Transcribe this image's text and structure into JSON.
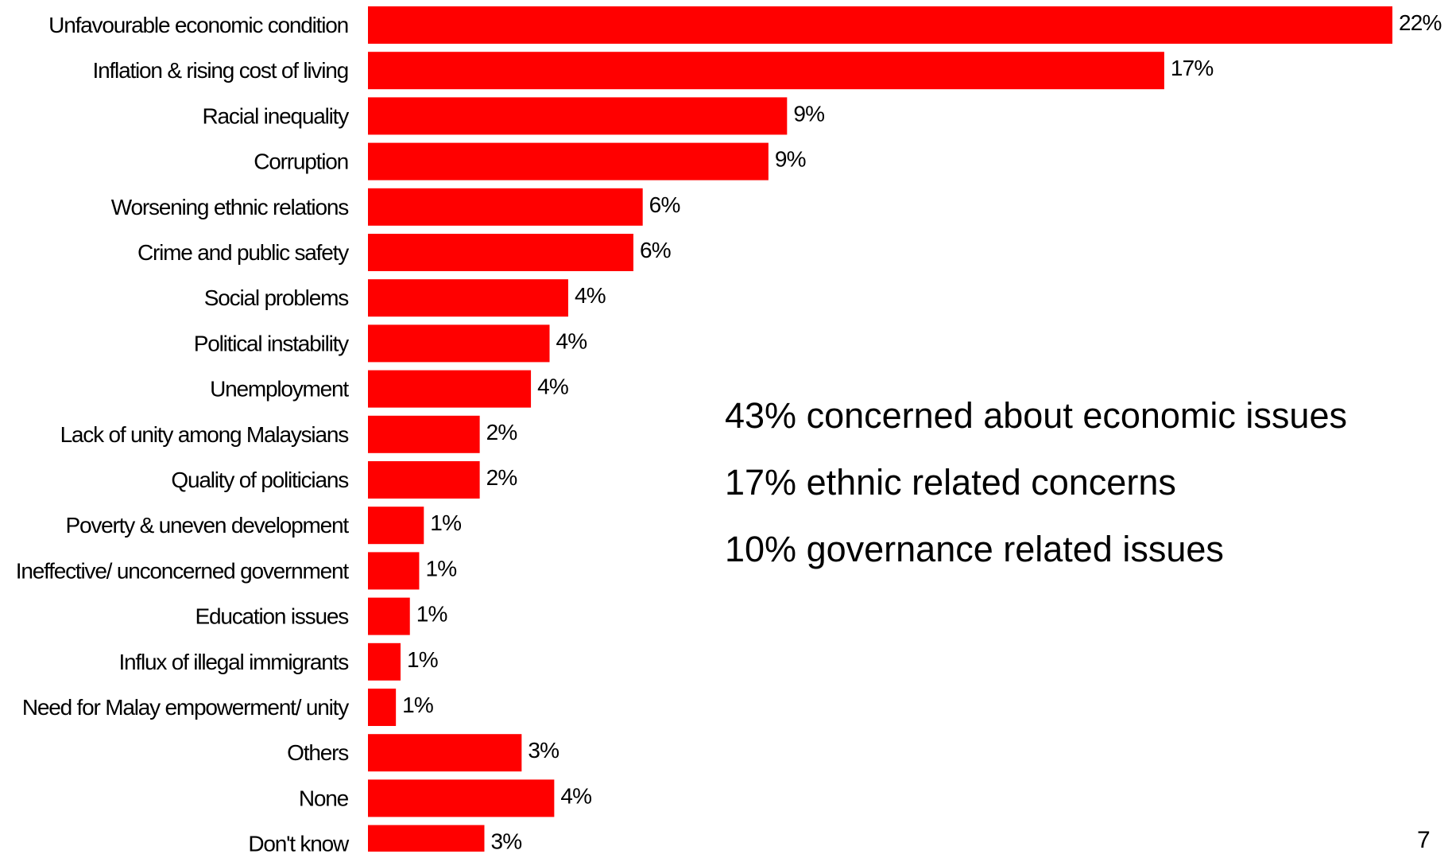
{
  "chart_data": {
    "type": "bar",
    "orientation": "horizontal",
    "categories": [
      "Unfavourable economic condition",
      "Inflation & rising cost of living",
      "Racial inequality",
      "Corruption",
      "Worsening ethnic relations",
      "Crime and public safety",
      "Social problems",
      "Political instability",
      "Unemployment",
      "Lack of unity among Malaysians",
      "Quality of politicians",
      "Poverty & uneven development",
      "Ineffective/ unconcerned government",
      "Education issues",
      "Influx of illegal immigrants",
      "Need for Malay empowerment/ unity",
      "Others",
      "None",
      "Don't know"
    ],
    "values": [
      22,
      17,
      9,
      9,
      6,
      6,
      4,
      4,
      4,
      2,
      2,
      1,
      1,
      1,
      1,
      1,
      3,
      4,
      3
    ],
    "bar_lengths": [
      22.0,
      17.1,
      9.0,
      8.6,
      5.9,
      5.7,
      4.3,
      3.9,
      3.5,
      2.4,
      2.4,
      1.2,
      1.1,
      0.9,
      0.7,
      0.6,
      3.3,
      4.0,
      2.5
    ],
    "data_labels": [
      "22%",
      "17%",
      "9%",
      "9%",
      "6%",
      "6%",
      "4%",
      "4%",
      "4%",
      "2%",
      "2%",
      "1%",
      "1%",
      "1%",
      "1%",
      "1%",
      "3%",
      "4%",
      "3%"
    ],
    "bar_color": "#ff0000",
    "title": "",
    "xlabel": "",
    "ylabel": "",
    "xlim": [
      0,
      22
    ],
    "grid": false,
    "legend": "none"
  },
  "notes": [
    "43% concerned about economic issues",
    "17% ethnic related concerns",
    "10% governance related issues"
  ],
  "page_number": "7"
}
